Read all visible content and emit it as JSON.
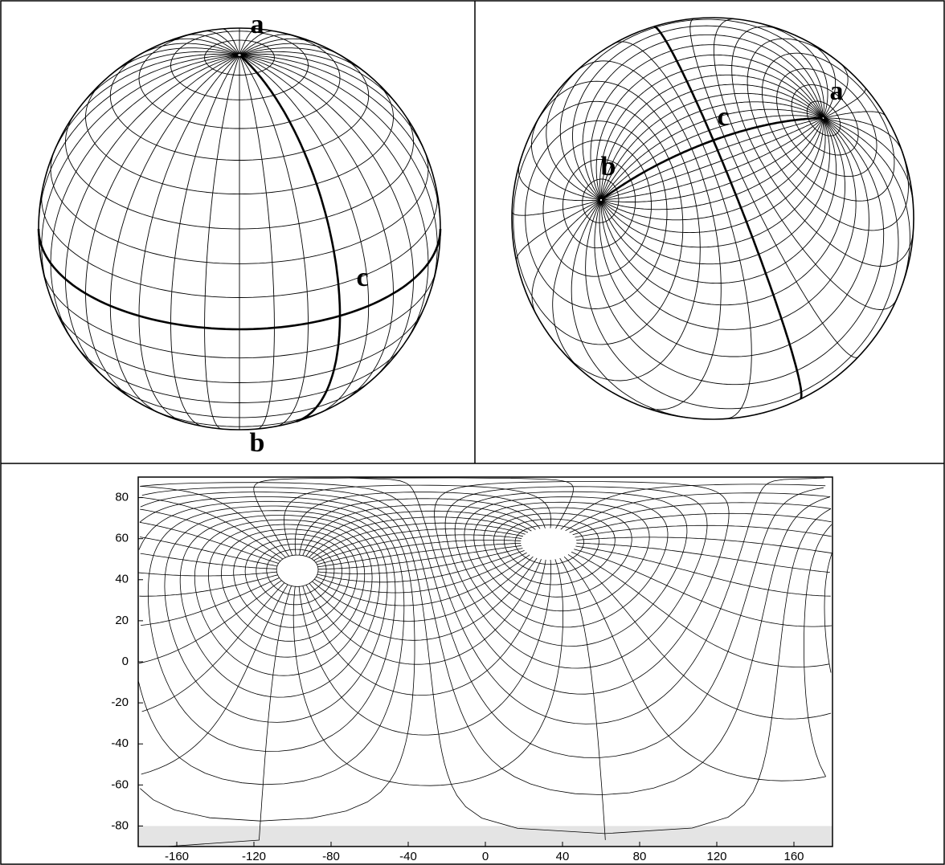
{
  "panels": {
    "globe_left": {
      "labels": {
        "a": "a",
        "b": "b",
        "c": "c"
      }
    },
    "globe_right": {
      "labels": {
        "a": "a",
        "b": "b",
        "c": "c"
      }
    },
    "map": {
      "xlim": [
        -180,
        180
      ],
      "ylim": [
        -90,
        90
      ],
      "xticks": [
        -160,
        -120,
        -80,
        -40,
        0,
        40,
        80,
        120,
        160
      ],
      "yticks": [
        -80,
        -60,
        -40,
        -20,
        0,
        20,
        40,
        60,
        80
      ]
    }
  }
}
